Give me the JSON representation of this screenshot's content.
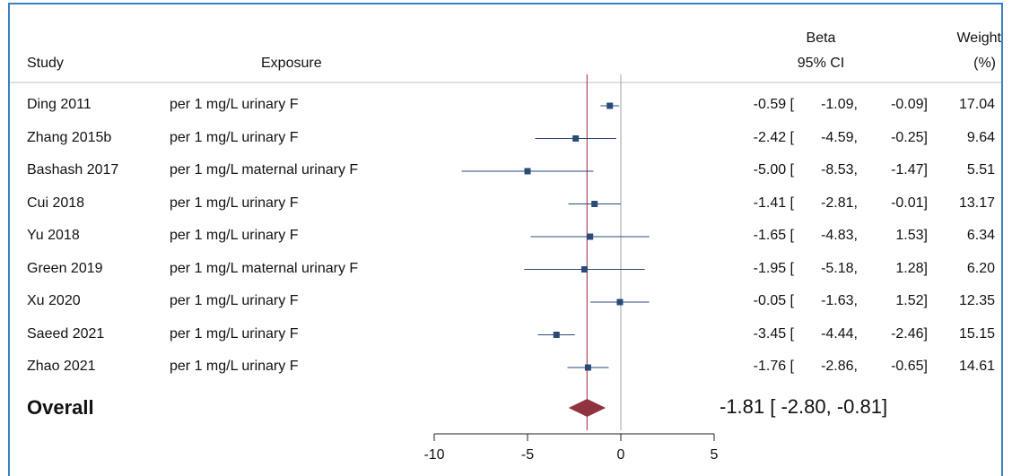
{
  "headers": {
    "study": "Study",
    "exposure": "Exposure",
    "beta_line1": "Beta",
    "beta_line2": "95% CI",
    "weight_line1": "Weight",
    "weight_line2": "(%)"
  },
  "colors": {
    "border": "#3a80c4",
    "marker": "#2b4a78",
    "overall_line": "#b0485a",
    "null_line": "#b0b0b0",
    "diamond": "#8f3340"
  },
  "chart_data": {
    "type": "forest",
    "xlim": [
      -10,
      5
    ],
    "xticks": [
      -10,
      -5,
      0,
      5
    ],
    "xtick_labels": [
      "-10",
      "-5",
      "0",
      "5"
    ],
    "studies": [
      {
        "study": "Ding 2011",
        "exposure": "per 1 mg/L urinary F",
        "beta": -0.59,
        "lo": -1.09,
        "hi": -0.09,
        "weight": 17.04,
        "beta_label": "-0.59 [",
        "lo_label": "-1.09,",
        "hi_label": "-0.09]",
        "weight_label": "17.04"
      },
      {
        "study": "Zhang 2015b",
        "exposure": "per 1 mg/L urinary F",
        "beta": -2.42,
        "lo": -4.59,
        "hi": -0.25,
        "weight": 9.64,
        "beta_label": "-2.42 [",
        "lo_label": "-4.59,",
        "hi_label": "-0.25]",
        "weight_label": "9.64"
      },
      {
        "study": "Bashash 2017",
        "exposure": "per 1 mg/L maternal urinary F",
        "beta": -5.0,
        "lo": -8.53,
        "hi": -1.47,
        "weight": 5.51,
        "beta_label": "-5.00 [",
        "lo_label": "-8.53,",
        "hi_label": "-1.47]",
        "weight_label": "5.51"
      },
      {
        "study": "Cui 2018",
        "exposure": "per 1 mg/L urinary F",
        "beta": -1.41,
        "lo": -2.81,
        "hi": -0.01,
        "weight": 13.17,
        "beta_label": "-1.41 [",
        "lo_label": "-2.81,",
        "hi_label": "-0.01]",
        "weight_label": "13.17"
      },
      {
        "study": "Yu 2018",
        "exposure": "per 1 mg/L urinary F",
        "beta": -1.65,
        "lo": -4.83,
        "hi": 1.53,
        "weight": 6.34,
        "beta_label": "-1.65 [",
        "lo_label": "-4.83,",
        "hi_label": "1.53]",
        "weight_label": "6.34"
      },
      {
        "study": "Green 2019",
        "exposure": "per 1 mg/L maternal urinary F",
        "beta": -1.95,
        "lo": -5.18,
        "hi": 1.28,
        "weight": 6.2,
        "beta_label": "-1.95 [",
        "lo_label": "-5.18,",
        "hi_label": "1.28]",
        "weight_label": "6.20"
      },
      {
        "study": "Xu 2020",
        "exposure": "per 1 mg/L urinary F",
        "beta": -0.05,
        "lo": -1.63,
        "hi": 1.52,
        "weight": 12.35,
        "beta_label": "-0.05 [",
        "lo_label": "-1.63,",
        "hi_label": "1.52]",
        "weight_label": "12.35"
      },
      {
        "study": "Saeed 2021",
        "exposure": "per 1 mg/L urinary F",
        "beta": -3.45,
        "lo": -4.44,
        "hi": -2.46,
        "weight": 15.15,
        "beta_label": "-3.45 [",
        "lo_label": "-4.44,",
        "hi_label": "-2.46]",
        "weight_label": "15.15"
      },
      {
        "study": "Zhao 2021",
        "exposure": "per 1 mg/L urinary F",
        "beta": -1.76,
        "lo": -2.86,
        "hi": -0.65,
        "weight": 14.61,
        "beta_label": "-1.76 [",
        "lo_label": "-2.86,",
        "hi_label": "-0.65]",
        "weight_label": "14.61"
      }
    ],
    "overall": {
      "label": "Overall",
      "beta": -1.81,
      "lo": -2.8,
      "hi": -0.81,
      "ci_label": "-1.81 [ -2.80,  -0.81]"
    }
  }
}
